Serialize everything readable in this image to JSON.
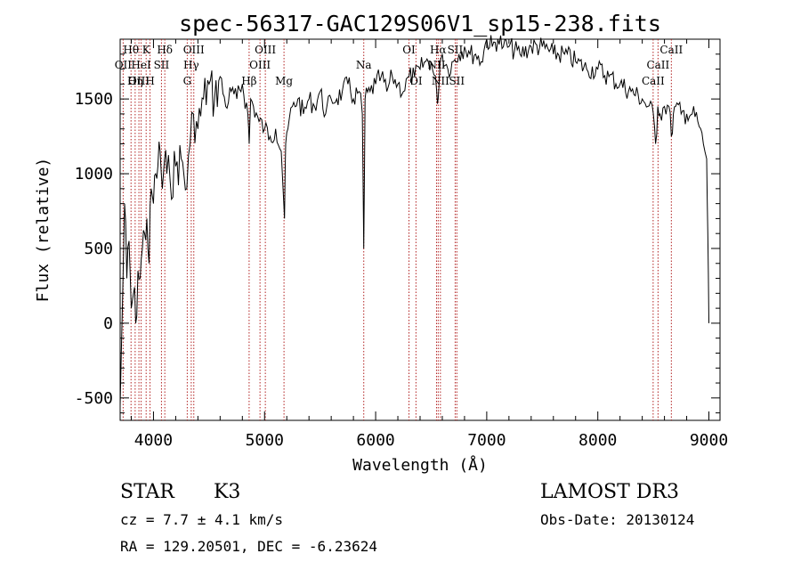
{
  "chart_data": {
    "type": "line",
    "title": "spec-56317-GAC129S06V1_sp15-238.fits",
    "xlabel": "Wavelength (Å)",
    "ylabel": "Flux (relative)",
    "xlim": [
      3700,
      9100
    ],
    "ylim": [
      -650,
      1900
    ],
    "xticks": [
      4000,
      5000,
      6000,
      7000,
      8000,
      9000
    ],
    "yticks": [
      -500,
      0,
      500,
      1000,
      1500
    ],
    "grid": false,
    "spectrum": {
      "x": [
        3700,
        3720,
        3740,
        3760,
        3780,
        3800,
        3820,
        3840,
        3860,
        3880,
        3900,
        3920,
        3940,
        3960,
        3980,
        4000,
        4020,
        4040,
        4060,
        4080,
        4100,
        4120,
        4150,
        4200,
        4250,
        4300,
        4330,
        4360,
        4400,
        4450,
        4500,
        4550,
        4600,
        4650,
        4700,
        4750,
        4800,
        4850,
        4862,
        4875,
        4900,
        4950,
        5000,
        5050,
        5100,
        5150,
        5180,
        5190,
        5210,
        5250,
        5300,
        5350,
        5400,
        5450,
        5500,
        5550,
        5600,
        5650,
        5700,
        5750,
        5800,
        5850,
        5880,
        5893,
        5905,
        5950,
        6000,
        6050,
        6100,
        6150,
        6200,
        6250,
        6300,
        6350,
        6400,
        6450,
        6500,
        6550,
        6563,
        6580,
        6600,
        6650,
        6700,
        6750,
        6800,
        6850,
        6900,
        6950,
        7000,
        7050,
        7100,
        7150,
        7200,
        7300,
        7400,
        7500,
        7600,
        7700,
        7800,
        7900,
        8000,
        8100,
        8200,
        8300,
        8400,
        8450,
        8500,
        8520,
        8540,
        8560,
        8600,
        8640,
        8662,
        8680,
        8700,
        8750,
        8800,
        8850,
        8900,
        8950,
        8980,
        8990,
        9000
      ],
      "y": [
        -550,
        100,
        800,
        300,
        550,
        100,
        200,
        0,
        350,
        300,
        500,
        600,
        700,
        400,
        900,
        800,
        1000,
        1050,
        1150,
        900,
        1100,
        1000,
        950,
        1050,
        1100,
        900,
        1200,
        1400,
        1300,
        1500,
        1600,
        1500,
        1650,
        1450,
        1550,
        1500,
        1600,
        1400,
        1200,
        1500,
        1450,
        1350,
        1300,
        1250,
        1300,
        1150,
        700,
        1200,
        1300,
        1450,
        1500,
        1400,
        1500,
        1450,
        1550,
        1400,
        1500,
        1500,
        1550,
        1600,
        1500,
        1550,
        1400,
        500,
        1500,
        1550,
        1600,
        1650,
        1550,
        1650,
        1600,
        1550,
        1650,
        1650,
        1700,
        1750,
        1750,
        1550,
        1500,
        1750,
        1800,
        1700,
        1750,
        1800,
        1850,
        1800,
        1800,
        1750,
        1900,
        1850,
        1900,
        1850,
        1850,
        1800,
        1850,
        1850,
        1800,
        1800,
        1750,
        1700,
        1700,
        1650,
        1600,
        1550,
        1500,
        1450,
        1400,
        1200,
        1450,
        1400,
        1450,
        1450,
        1250,
        1400,
        1450,
        1400,
        1400,
        1400,
        1350,
        1200,
        1100,
        600,
        0
      ],
      "color": "#000000"
    },
    "lines": [
      {
        "name": "Hθ",
        "x": 3798,
        "row": 0
      },
      {
        "name": "OII",
        "x": 3727,
        "row": 1
      },
      {
        "name": "OIII",
        "x": 3869,
        "row": 2
      },
      {
        "name": "K",
        "x": 3934,
        "row": 0
      },
      {
        "name": "HeI",
        "x": 3889,
        "row": 1
      },
      {
        "name": "Hη",
        "x": 3835,
        "row": 2
      },
      {
        "name": "SII",
        "x": 4072,
        "row": 1
      },
      {
        "name": "H",
        "x": 3969,
        "row": 2
      },
      {
        "name": "Hδ",
        "x": 4102,
        "row": 0
      },
      {
        "name": "OIII",
        "x": 4363,
        "row": 0
      },
      {
        "name": "Hγ",
        "x": 4340,
        "row": 1
      },
      {
        "name": "G",
        "x": 4304,
        "row": 2
      },
      {
        "name": "Hβ",
        "x": 4861,
        "row": 2
      },
      {
        "name": "OIII",
        "x": 5007,
        "row": 0
      },
      {
        "name": "OIII",
        "x": 4959,
        "row": 1
      },
      {
        "name": "Mg",
        "x": 5175,
        "row": 2
      },
      {
        "name": "Na",
        "x": 5893,
        "row": 1
      },
      {
        "name": "OI",
        "x": 6300,
        "row": 0
      },
      {
        "name": "OI",
        "x": 6363,
        "row": 2
      },
      {
        "name": "Hα",
        "x": 6563,
        "row": 0
      },
      {
        "name": "NII",
        "x": 6548,
        "row": 1
      },
      {
        "name": "NII",
        "x": 6583,
        "row": 2
      },
      {
        "name": "SII",
        "x": 6716,
        "row": 0
      },
      {
        "name": "SII",
        "x": 6731,
        "row": 2
      },
      {
        "name": "CaII",
        "x": 8662,
        "row": 0
      },
      {
        "name": "CaII",
        "x": 8542,
        "row": 1
      },
      {
        "name": "CaII",
        "x": 8498,
        "row": 2
      }
    ],
    "line_color": "#b22222"
  },
  "info": {
    "object_type": "STAR",
    "subclass": "K3",
    "survey": "LAMOST DR3",
    "redshift": "cz = 7.7 ± 4.1 km/s",
    "obs_date": "Obs-Date: 20130124",
    "coords": "RA = 129.20501, DEC =  -6.23624"
  }
}
